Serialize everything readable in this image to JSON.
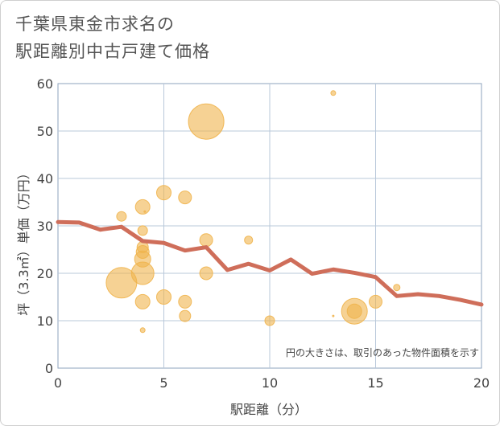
{
  "title_line1": "千葉県東金市求名の",
  "title_line2": "駅距離別中古戸建て価格",
  "colors": {
    "bubble": "#f0b44c",
    "line": "#cf6e5a",
    "grid": "#b9c8da",
    "axis_text": "#444444",
    "plot_border": "#8ea3bd"
  },
  "chart_data": {
    "type": "scatter",
    "xlabel": "駅距離（分）",
    "ylabel": "坪（3.3㎡）単価（万円）",
    "xlim": [
      0,
      20
    ],
    "ylim": [
      0,
      60
    ],
    "x_ticks": [
      "0",
      "5",
      "10",
      "15",
      "20"
    ],
    "y_ticks": [
      "0",
      "10",
      "20",
      "30",
      "40",
      "50",
      "60"
    ],
    "grid": true,
    "note": "円の大きさは、取引のあった物件面積を示す",
    "bubbles": [
      {
        "x": 3,
        "y": 32,
        "r": 6
      },
      {
        "x": 3,
        "y": 18,
        "r": 19
      },
      {
        "x": 4,
        "y": 34,
        "r": 9
      },
      {
        "x": 4,
        "y": 29,
        "r": 6
      },
      {
        "x": 4,
        "y": 25.5,
        "r": 7
      },
      {
        "x": 4,
        "y": 24.5,
        "r": 8
      },
      {
        "x": 4,
        "y": 23,
        "r": 10
      },
      {
        "x": 4,
        "y": 20,
        "r": 14
      },
      {
        "x": 4,
        "y": 14,
        "r": 9
      },
      {
        "x": 4,
        "y": 8,
        "r": 3
      },
      {
        "x": 4.1,
        "y": 33,
        "r": 1
      },
      {
        "x": 5,
        "y": 37,
        "r": 9
      },
      {
        "x": 5,
        "y": 15,
        "r": 9
      },
      {
        "x": 6,
        "y": 36,
        "r": 8
      },
      {
        "x": 6,
        "y": 14,
        "r": 8
      },
      {
        "x": 6,
        "y": 11,
        "r": 7
      },
      {
        "x": 7,
        "y": 52,
        "r": 22
      },
      {
        "x": 7,
        "y": 27,
        "r": 8
      },
      {
        "x": 7,
        "y": 20,
        "r": 8
      },
      {
        "x": 9,
        "y": 27,
        "r": 5
      },
      {
        "x": 10,
        "y": 10,
        "r": 6
      },
      {
        "x": 13,
        "y": 58,
        "r": 3
      },
      {
        "x": 13,
        "y": 11,
        "r": 1
      },
      {
        "x": 14,
        "y": 12,
        "r": 16
      },
      {
        "x": 14,
        "y": 12,
        "r": 9
      },
      {
        "x": 15,
        "y": 14,
        "r": 8
      },
      {
        "x": 16,
        "y": 17,
        "r": 4
      }
    ],
    "series": [
      {
        "x": [
          0,
          1,
          2,
          3,
          4,
          5,
          6,
          7,
          8,
          9,
          10,
          11,
          12,
          13,
          14,
          15,
          16,
          17,
          18,
          19,
          20
        ],
        "values": [
          30.8,
          30.7,
          29.2,
          29.8,
          26.8,
          26.4,
          24.8,
          25.5,
          20.7,
          22,
          20.6,
          22.9,
          19.9,
          20.8,
          20.1,
          19.2,
          15.2,
          15.6,
          15.2,
          14.4,
          13.4
        ]
      }
    ]
  }
}
